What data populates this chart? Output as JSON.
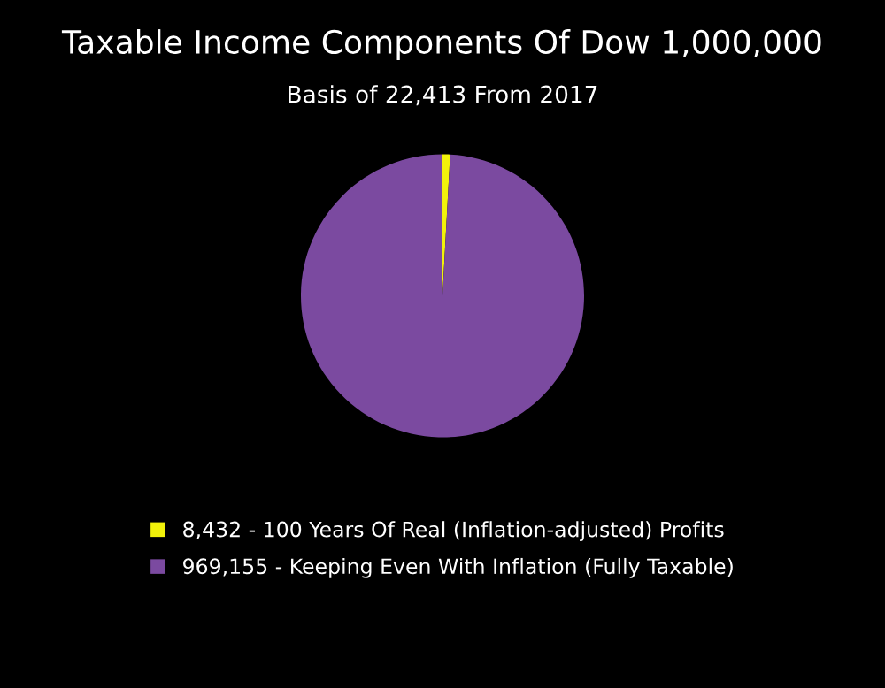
{
  "chart_data": {
    "type": "pie",
    "title": "Taxable Income Components Of Dow 1,000,000",
    "subtitle": "Basis of 22,413 From 2017",
    "categories": [
      "8,432 - 100 Years Of Real (Inflation-adjusted) Profits",
      "969,155 - Keeping Even With Inflation (Fully Taxable)"
    ],
    "values": [
      8432,
      969155
    ],
    "colors": [
      "#f2f20a",
      "#7b4aa0"
    ],
    "legend": "bottom"
  }
}
